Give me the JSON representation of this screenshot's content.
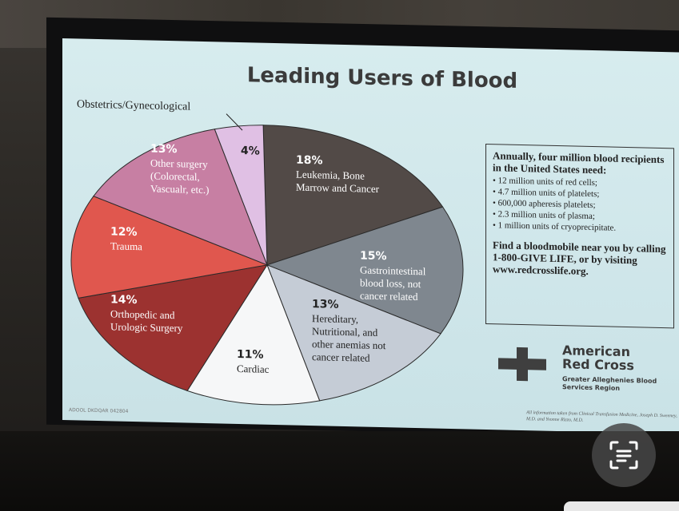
{
  "slide": {
    "title": "Leading Users of Blood",
    "info": {
      "heading": "Annually, four million blood recipients in the United States need:",
      "items": [
        "12 million units of red cells;",
        "4.7 million units of platelets;",
        "600,000 apheresis platelets;",
        "2.3 million units of plasma;",
        "1 million units of cryoprecipitate."
      ],
      "cta": "Find a bloodmobile near you by calling 1-800-GIVE LIFE, or by visiting www.redcrosslife.org."
    },
    "logo": {
      "name": "American Red Cross",
      "region": "Greater Alleghenies Blood Services Region"
    },
    "source_note": "All information taken from Clinical Transfusion Medicine, Joseph D. Sweeney, M.D. and Yvonne Rizzo, M.D.",
    "slide_code": "ADOOL DKDQAR 042804"
  },
  "chart_data": {
    "type": "pie",
    "title": "Leading Users of Blood",
    "slices": [
      {
        "label": "Leukemia, Bone Marrow and Cancer",
        "percent_label": "18%",
        "value": 18,
        "color": "#524a47"
      },
      {
        "label": "Gastrointestinal blood loss, not cancer related",
        "percent_label": "15%",
        "value": 15,
        "color": "#7f878f"
      },
      {
        "label": "Hereditary, Nutritional, and other anemias not cancer related",
        "percent_label": "13%",
        "value": 13,
        "color": "#c5ccd6"
      },
      {
        "label": "Cardiac",
        "percent_label": "11%",
        "value": 11,
        "color": "#f6f7f8"
      },
      {
        "label": "Orthopedic and Urologic Surgery",
        "percent_label": "14%",
        "value": 14,
        "color": "#9c3230"
      },
      {
        "label": "Trauma",
        "percent_label": "12%",
        "value": 12,
        "color": "#e0574e"
      },
      {
        "label": "Other surgery (Colorectal, Vascualr, etc.)",
        "percent_label": "13%",
        "value": 13,
        "color": "#c77fa3"
      },
      {
        "label": "Obstetrics/Gynecological",
        "percent_label": "4%",
        "value": 4,
        "color": "#e0c0e4"
      }
    ]
  },
  "lens_button": {
    "icon": "scan-text-icon"
  }
}
